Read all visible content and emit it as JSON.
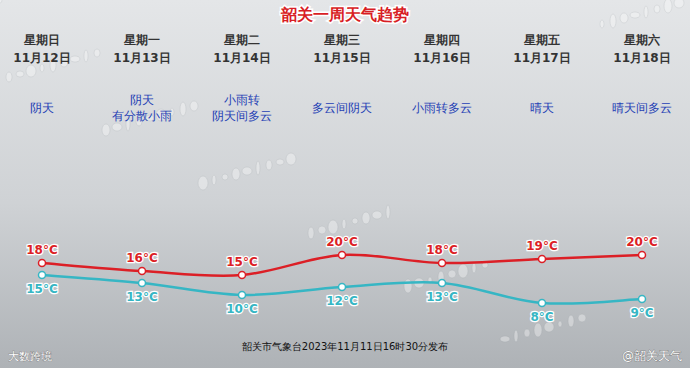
{
  "chart_data": {
    "type": "line",
    "title": "韶关一周天气趋势",
    "weekdays": [
      "星期日",
      "星期一",
      "星期二",
      "星期三",
      "星期四",
      "星期五",
      "星期六"
    ],
    "categories": [
      "11月12日",
      "11月13日",
      "11月14日",
      "11月15日",
      "11月16日",
      "11月17日",
      "11月18日"
    ],
    "weather": [
      "阴天",
      "阴天\n有分散小雨",
      "小雨转\n阴天间多云",
      "多云间阴天",
      "小雨转多云",
      "晴天",
      "晴天间多云"
    ],
    "series": [
      {
        "color": "#dc1f26",
        "values": [
          18,
          16,
          15,
          20,
          18,
          19,
          20
        ],
        "value_labels": [
          "18°C",
          "16°C",
          "15°C",
          "20°C",
          "18°C",
          "19°C",
          "20°C"
        ]
      },
      {
        "color": "#36b6c4",
        "values": [
          15,
          13,
          10,
          12,
          13,
          8,
          9
        ],
        "value_labels": [
          "15°C",
          "13°C",
          "10°C",
          "12°C",
          "13°C",
          "8°C",
          "9°C"
        ]
      }
    ],
    "ylim": [
      0,
      30
    ],
    "tick_labels": false,
    "grid": false,
    "data_labels": true,
    "marker": "circle",
    "source": "韶关市气象台2023年11月11日16时30分发布",
    "annotations": [
      "大数跨境",
      "@韶关天气"
    ]
  }
}
